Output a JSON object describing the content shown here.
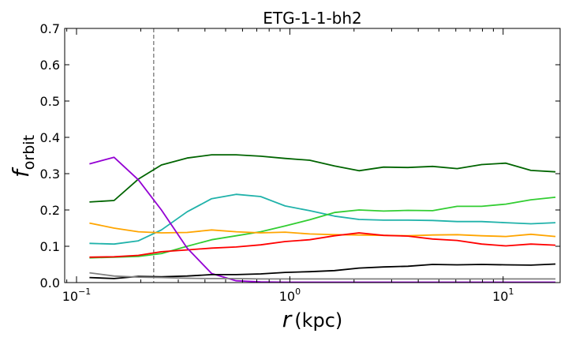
{
  "chart_data": {
    "type": "line",
    "title": "ETG-1-1-bh2",
    "xlabel_var": "r",
    "xlabel_unit": "(kpc)",
    "ylabel_base": "f",
    "ylabel_sub": "orbit",
    "xscale": "log",
    "xlim": [
      0.088,
      18.5
    ],
    "ylim": [
      0,
      0.7
    ],
    "yticks": [
      "0.0",
      "0.1",
      "0.2",
      "0.3",
      "0.4",
      "0.5",
      "0.6",
      "0.7"
    ],
    "xticks": [
      {
        "base": "10",
        "exp": "−1"
      },
      {
        "base": "10",
        "exp": "0"
      },
      {
        "base": "10",
        "exp": "1"
      }
    ],
    "vline": {
      "x": 0.23,
      "color": "#808080",
      "style": "dashed"
    },
    "grid": false,
    "legend": "none",
    "x": [
      0.115,
      0.15,
      0.195,
      0.25,
      0.33,
      0.43,
      0.56,
      0.73,
      0.95,
      1.24,
      1.62,
      2.11,
      2.75,
      3.58,
      4.67,
      6.09,
      7.93,
      10.3,
      13.5,
      17.6
    ],
    "series": [
      {
        "color": "#006400",
        "values": [
          0.222,
          0.226,
          0.285,
          0.324,
          0.343,
          0.352,
          0.352,
          0.348,
          0.342,
          0.337,
          0.321,
          0.308,
          0.318,
          0.317,
          0.32,
          0.314,
          0.325,
          0.329,
          0.309,
          0.305
        ]
      },
      {
        "color": "#20b2aa",
        "values": [
          0.108,
          0.106,
          0.115,
          0.145,
          0.195,
          0.231,
          0.243,
          0.237,
          0.211,
          0.198,
          0.183,
          0.174,
          0.172,
          0.172,
          0.171,
          0.168,
          0.168,
          0.165,
          0.162,
          0.165
        ]
      },
      {
        "color": "#32cd32",
        "values": [
          0.068,
          0.07,
          0.072,
          0.08,
          0.1,
          0.118,
          0.129,
          0.14,
          0.156,
          0.173,
          0.193,
          0.2,
          0.197,
          0.199,
          0.198,
          0.21,
          0.21,
          0.216,
          0.228,
          0.235
        ]
      },
      {
        "color": "#ffa500",
        "values": [
          0.164,
          0.15,
          0.14,
          0.137,
          0.138,
          0.145,
          0.14,
          0.137,
          0.139,
          0.134,
          0.132,
          0.131,
          0.13,
          0.129,
          0.131,
          0.132,
          0.129,
          0.127,
          0.133,
          0.127
        ]
      },
      {
        "color": "#ff0000",
        "values": [
          0.07,
          0.071,
          0.075,
          0.085,
          0.09,
          0.095,
          0.098,
          0.104,
          0.113,
          0.118,
          0.129,
          0.137,
          0.13,
          0.128,
          0.12,
          0.116,
          0.106,
          0.101,
          0.106,
          0.103
        ]
      },
      {
        "color": "#9400d3",
        "values": [
          0.327,
          0.345,
          0.283,
          0.2,
          0.095,
          0.025,
          0.005,
          0.002,
          0.001,
          0.001,
          0.001,
          0.001,
          0.001,
          0.001,
          0.001,
          0.001,
          0.001,
          0.001,
          0.001,
          0.001
        ]
      },
      {
        "color": "#000000",
        "values": [
          0.014,
          0.011,
          0.017,
          0.016,
          0.018,
          0.022,
          0.022,
          0.024,
          0.028,
          0.03,
          0.033,
          0.04,
          0.043,
          0.045,
          0.05,
          0.049,
          0.05,
          0.049,
          0.048,
          0.051
        ]
      },
      {
        "color": "#808080",
        "values": [
          0.027,
          0.018,
          0.015,
          0.014,
          0.012,
          0.011,
          0.011,
          0.01,
          0.01,
          0.01,
          0.01,
          0.01,
          0.01,
          0.01,
          0.01,
          0.01,
          0.01,
          0.01,
          0.01,
          0.01
        ]
      }
    ]
  }
}
